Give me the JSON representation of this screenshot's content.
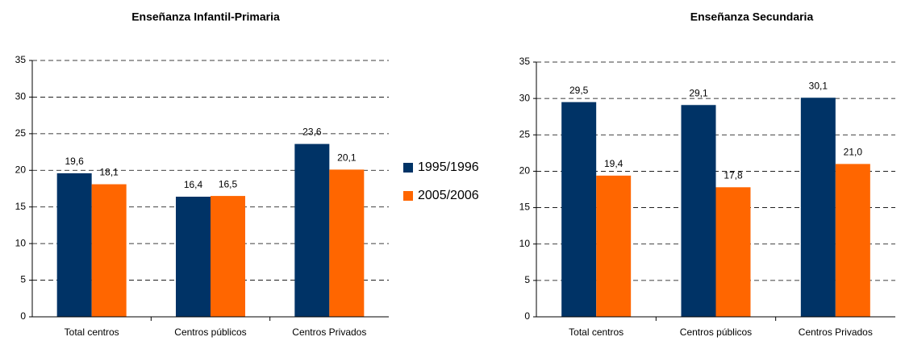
{
  "chart_data": [
    {
      "type": "bar",
      "title": "Enseñanza Infantil-Primaria",
      "categories": [
        "Total centros",
        "Centros públicos",
        "Centros Privados"
      ],
      "series": [
        {
          "name": "1995/1996",
          "color": "#003366",
          "values": [
            19.6,
            16.4,
            23.6
          ],
          "value_labels": [
            "19,6",
            "16,4",
            "23,6"
          ]
        },
        {
          "name": "2005/2006",
          "color": "#ff6600",
          "values": [
            18.1,
            16.5,
            20.1
          ],
          "value_labels": [
            "18,1",
            "16,5",
            "20,1"
          ]
        }
      ],
      "ylim": [
        0,
        35
      ],
      "yticks": [
        0,
        5,
        10,
        15,
        20,
        25,
        30,
        35
      ],
      "grid": true,
      "legend": "right"
    },
    {
      "type": "bar",
      "title": "Enseñanza Secundaria",
      "categories": [
        "Total centros",
        "Centros públicos",
        "Centros Privados"
      ],
      "series": [
        {
          "color": "#003366",
          "values": [
            29.5,
            29.1,
            30.1
          ],
          "value_labels": [
            "29,5",
            "29,1",
            "30,1"
          ]
        },
        {
          "color": "#ff6600",
          "values": [
            19.4,
            17.8,
            21.0
          ],
          "value_labels": [
            "19,4",
            "17,8",
            "21,0"
          ]
        }
      ],
      "ylim": [
        0,
        35
      ],
      "yticks": [
        0,
        5,
        10,
        15,
        20,
        25,
        30,
        35
      ],
      "grid": true
    }
  ]
}
